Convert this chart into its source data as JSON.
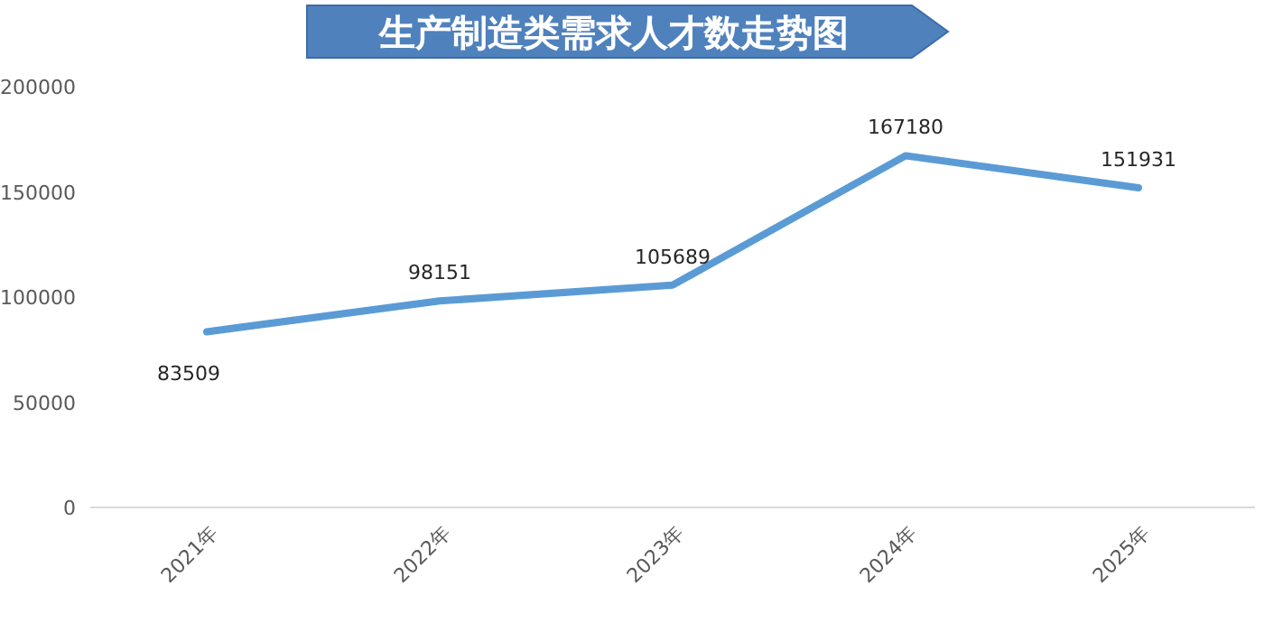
{
  "chart_data": {
    "type": "line",
    "title": "生产制造类需求人才数走势图",
    "categories": [
      "2021年",
      "2022年",
      "2023年",
      "2024年",
      "2025年"
    ],
    "values": [
      83509,
      98151,
      105689,
      167180,
      151931
    ],
    "color": "#5b9bd5",
    "ylim": [
      0,
      200000
    ],
    "yticks": [
      0,
      50000,
      100000,
      150000,
      200000
    ],
    "data_labels": true,
    "grid": false
  }
}
